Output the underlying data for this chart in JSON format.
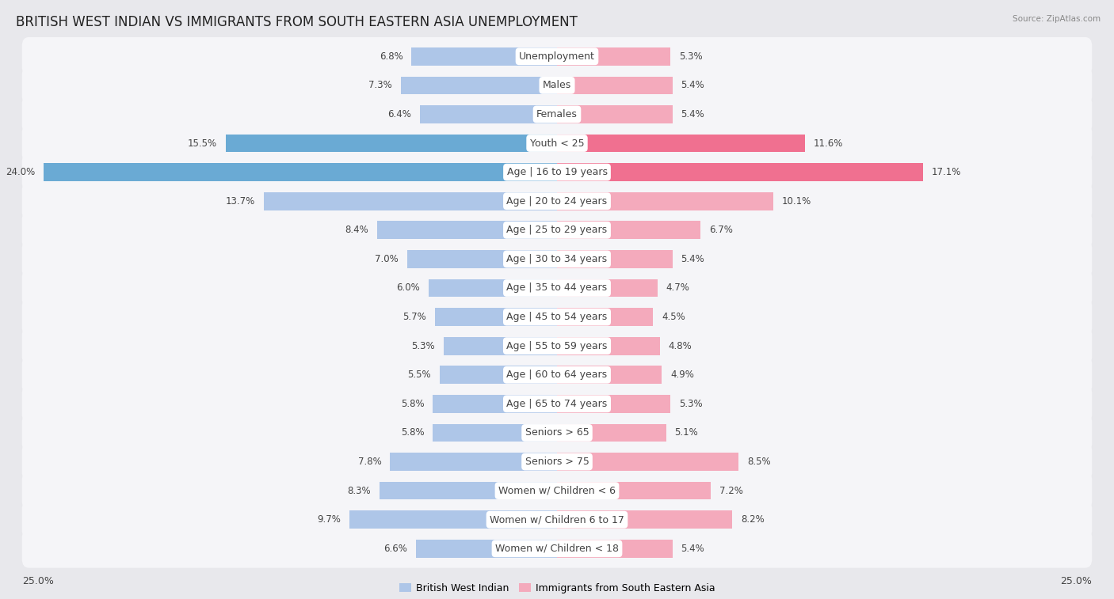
{
  "title": "BRITISH WEST INDIAN VS IMMIGRANTS FROM SOUTH EASTERN ASIA UNEMPLOYMENT",
  "source": "Source: ZipAtlas.com",
  "categories": [
    "Unemployment",
    "Males",
    "Females",
    "Youth < 25",
    "Age | 16 to 19 years",
    "Age | 20 to 24 years",
    "Age | 25 to 29 years",
    "Age | 30 to 34 years",
    "Age | 35 to 44 years",
    "Age | 45 to 54 years",
    "Age | 55 to 59 years",
    "Age | 60 to 64 years",
    "Age | 65 to 74 years",
    "Seniors > 65",
    "Seniors > 75",
    "Women w/ Children < 6",
    "Women w/ Children 6 to 17",
    "Women w/ Children < 18"
  ],
  "left_values": [
    6.8,
    7.3,
    6.4,
    15.5,
    24.0,
    13.7,
    8.4,
    7.0,
    6.0,
    5.7,
    5.3,
    5.5,
    5.8,
    5.8,
    7.8,
    8.3,
    9.7,
    6.6
  ],
  "right_values": [
    5.3,
    5.4,
    5.4,
    11.6,
    17.1,
    10.1,
    6.7,
    5.4,
    4.7,
    4.5,
    4.8,
    4.9,
    5.3,
    5.1,
    8.5,
    7.2,
    8.2,
    5.4
  ],
  "left_color_normal": "#aec6e8",
  "right_color_normal": "#f4aabc",
  "left_color_highlight": "#6aaad4",
  "right_color_highlight": "#f07090",
  "highlight_rows": [
    3,
    4
  ],
  "xlim": 25.0,
  "bg_color": "#e8e8ec",
  "row_bg_color": "#f5f5f8",
  "label_pill_color": "#ffffff",
  "left_label": "British West Indian",
  "right_label": "Immigrants from South Eastern Asia",
  "title_fontsize": 12,
  "cat_fontsize": 9,
  "value_fontsize": 8.5,
  "axis_fontsize": 9,
  "legend_fontsize": 9
}
